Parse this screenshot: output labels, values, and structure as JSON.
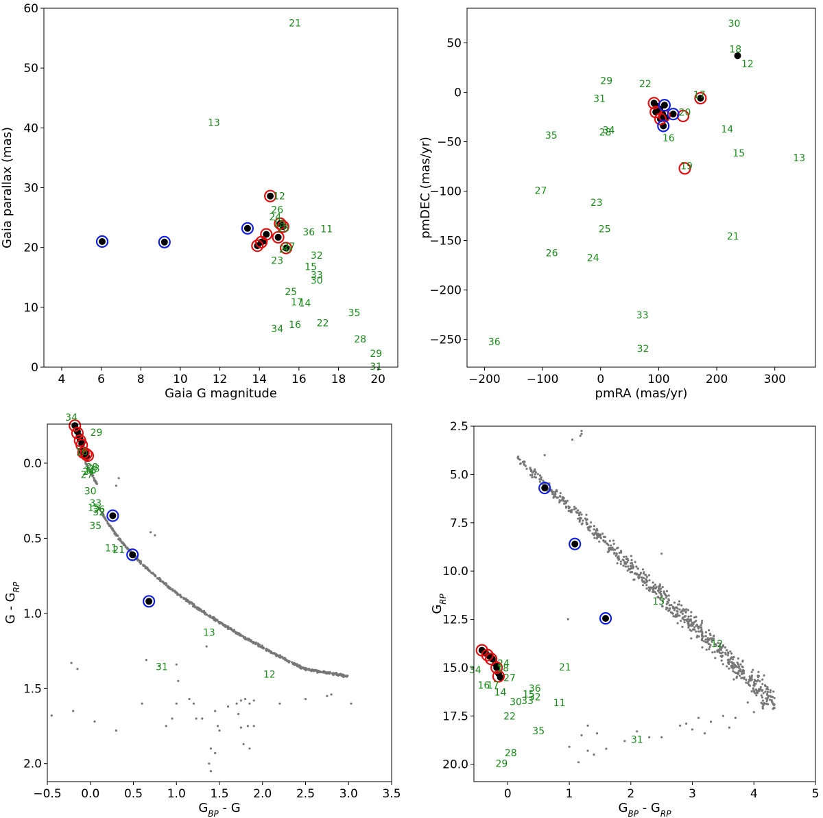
{
  "colors": {
    "label_green": "#1a8a1a",
    "ring_red": "#e01010",
    "ring_blue": "#1020e0",
    "bg_point": "#777777"
  },
  "chart_data": [
    {
      "type": "scatter",
      "name": "parallax_vs_g",
      "xlabel": "Gaia G magnitude",
      "ylabel": "Gaia parallax (mas)",
      "xlim": [
        3.1,
        21
      ],
      "ylim": [
        0,
        60
      ],
      "xticks": [
        4,
        6,
        8,
        10,
        12,
        14,
        16,
        18,
        20
      ],
      "yticks": [
        0,
        10,
        20,
        30,
        40,
        50,
        60
      ],
      "points": [
        [
          6.05,
          21.0
        ],
        [
          9.2,
          20.9
        ],
        [
          13.4,
          23.2
        ],
        [
          14.55,
          28.6
        ],
        [
          13.9,
          20.3
        ],
        [
          14.1,
          20.9
        ],
        [
          14.25,
          21.1
        ],
        [
          14.35,
          22.2
        ],
        [
          14.95,
          21.7
        ],
        [
          15.05,
          24.0
        ],
        [
          15.2,
          23.5
        ],
        [
          15.35,
          19.9
        ]
      ],
      "red_rings": [
        [
          14.55,
          28.6
        ],
        [
          13.9,
          20.3
        ],
        [
          14.1,
          20.9
        ],
        [
          14.35,
          22.2
        ],
        [
          14.95,
          21.7
        ],
        [
          15.05,
          24.0
        ],
        [
          15.2,
          23.5
        ],
        [
          15.35,
          19.9
        ]
      ],
      "blue_rings": [
        [
          6.05,
          21.0
        ],
        [
          9.2,
          20.9
        ],
        [
          13.4,
          23.2
        ]
      ],
      "labels": [
        {
          "text": "21",
          "x": 15.8,
          "y": 57.4
        },
        {
          "text": "13",
          "x": 11.7,
          "y": 40.8
        },
        {
          "text": "12",
          "x": 15.0,
          "y": 28.5
        },
        {
          "text": "26",
          "x": 14.9,
          "y": 26.2
        },
        {
          "text": "24",
          "x": 14.8,
          "y": 25.0
        },
        {
          "text": "19",
          "x": 15.0,
          "y": 23.9
        },
        {
          "text": "18",
          "x": 15.2,
          "y": 23.1
        },
        {
          "text": "36",
          "x": 16.5,
          "y": 22.5
        },
        {
          "text": "11",
          "x": 17.4,
          "y": 23.0
        },
        {
          "text": "27",
          "x": 15.5,
          "y": 20.1
        },
        {
          "text": "20",
          "x": 15.3,
          "y": 19.6
        },
        {
          "text": "23",
          "x": 14.9,
          "y": 17.7
        },
        {
          "text": "32",
          "x": 16.9,
          "y": 18.6
        },
        {
          "text": "15",
          "x": 16.6,
          "y": 16.7
        },
        {
          "text": "33",
          "x": 16.9,
          "y": 15.3
        },
        {
          "text": "30",
          "x": 16.9,
          "y": 14.4
        },
        {
          "text": "25",
          "x": 15.6,
          "y": 12.5
        },
        {
          "text": "17",
          "x": 15.9,
          "y": 10.8
        },
        {
          "text": "14",
          "x": 16.3,
          "y": 10.6
        },
        {
          "text": "35",
          "x": 18.8,
          "y": 9.0
        },
        {
          "text": "22",
          "x": 17.2,
          "y": 7.3
        },
        {
          "text": "16",
          "x": 15.8,
          "y": 7.0
        },
        {
          "text": "34",
          "x": 14.9,
          "y": 6.3
        },
        {
          "text": "28",
          "x": 19.1,
          "y": 4.6
        },
        {
          "text": "29",
          "x": 19.9,
          "y": 2.2
        },
        {
          "text": "31",
          "x": 19.9,
          "y": 0.0
        }
      ]
    },
    {
      "type": "scatter",
      "name": "proper_motion",
      "xlabel": "pmRA (mas/yr)",
      "ylabel": "pmDEC (mas/yr)",
      "xlim": [
        -230,
        370
      ],
      "ylim": [
        -278,
        85
      ],
      "xticks": [
        -200,
        -100,
        0,
        100,
        200,
        300
      ],
      "yticks": [
        -250,
        -200,
        -150,
        -100,
        -50,
        0,
        50
      ],
      "points": [
        [
          92,
          -11
        ],
        [
          97,
          -14
        ],
        [
          102,
          -17
        ],
        [
          107,
          -22
        ],
        [
          112,
          -26
        ],
        [
          95,
          -20
        ],
        [
          103,
          -27
        ],
        [
          110,
          -13
        ],
        [
          125,
          -22
        ],
        [
          108,
          -34
        ],
        [
          172,
          -6
        ],
        [
          236,
          37
        ]
      ],
      "red_rings": [
        [
          92,
          -11
        ],
        [
          95,
          -20
        ],
        [
          103,
          -27
        ],
        [
          110,
          -24
        ],
        [
          142,
          -24
        ],
        [
          145,
          -77
        ],
        [
          172,
          -6
        ]
      ],
      "blue_rings": [
        [
          110,
          -13
        ],
        [
          125,
          -22
        ],
        [
          108,
          -34
        ]
      ],
      "labels": [
        {
          "text": "30",
          "x": 230,
          "y": 69
        },
        {
          "text": "18",
          "x": 232,
          "y": 43
        },
        {
          "text": "12",
          "x": 253,
          "y": 28
        },
        {
          "text": "29",
          "x": 10,
          "y": 11
        },
        {
          "text": "22",
          "x": 77,
          "y": 8
        },
        {
          "text": "31",
          "x": -2,
          "y": -7
        },
        {
          "text": "17",
          "x": 170,
          "y": -3
        },
        {
          "text": "20",
          "x": 145,
          "y": -21
        },
        {
          "text": "35",
          "x": -85,
          "y": -44
        },
        {
          "text": "28",
          "x": 8,
          "y": -41
        },
        {
          "text": "34",
          "x": 14,
          "y": -39
        },
        {
          "text": "14",
          "x": 218,
          "y": -38
        },
        {
          "text": "16",
          "x": 117,
          "y": -47
        },
        {
          "text": "15",
          "x": 238,
          "y": -62
        },
        {
          "text": "13",
          "x": 342,
          "y": -67
        },
        {
          "text": "19",
          "x": 148,
          "y": -75
        },
        {
          "text": "27",
          "x": -103,
          "y": -100
        },
        {
          "text": "23",
          "x": -7,
          "y": -112
        },
        {
          "text": "25",
          "x": 7,
          "y": -139
        },
        {
          "text": "21",
          "x": 228,
          "y": -146
        },
        {
          "text": "26",
          "x": -84,
          "y": -163
        },
        {
          "text": "24",
          "x": -13,
          "y": -168
        },
        {
          "text": "33",
          "x": 72,
          "y": -226
        },
        {
          "text": "32",
          "x": 73,
          "y": -260
        },
        {
          "text": "36",
          "x": -183,
          "y": -253
        }
      ]
    },
    {
      "type": "scatter",
      "name": "color_color",
      "xlabel_main": "G",
      "xlabel_sub": "BP",
      "xlabel_tail": " - G",
      "ylabel_main": "G - G",
      "ylabel_sub": "RP",
      "xlim": [
        -0.5,
        3.5
      ],
      "ylim": [
        2.12,
        -0.26
      ],
      "yinverted": true,
      "xticks": [
        -0.5,
        0.0,
        0.5,
        1.0,
        1.5,
        2.0,
        2.5,
        3.0,
        3.5
      ],
      "xticklabels": [
        "−0.5",
        "0.0",
        "0.5",
        "1.0",
        "1.5",
        "2.0",
        "2.5",
        "3.0",
        "3.5"
      ],
      "yticks": [
        0.0,
        0.5,
        1.0,
        1.5,
        2.0
      ],
      "ytickformat": "fixed1",
      "points": [
        [
          -0.18,
          -0.25
        ],
        [
          -0.15,
          -0.21
        ],
        [
          -0.13,
          -0.18
        ],
        [
          -0.12,
          -0.16
        ],
        [
          -0.1,
          -0.13
        ],
        [
          -0.1,
          -0.08
        ],
        [
          -0.08,
          -0.06
        ],
        [
          -0.06,
          -0.05
        ],
        [
          -0.05,
          -0.07
        ],
        [
          -0.04,
          -0.04
        ],
        [
          0.26,
          0.35
        ],
        [
          0.49,
          0.61
        ],
        [
          0.68,
          0.92
        ]
      ],
      "red_rings": [
        [
          -0.18,
          -0.25
        ],
        [
          -0.15,
          -0.2
        ],
        [
          -0.12,
          -0.15
        ],
        [
          -0.1,
          -0.12
        ],
        [
          -0.08,
          -0.07
        ],
        [
          -0.05,
          -0.06
        ],
        [
          -0.03,
          -0.05
        ]
      ],
      "blue_rings": [
        [
          0.26,
          0.35
        ],
        [
          0.49,
          0.61
        ],
        [
          0.68,
          0.92
        ]
      ],
      "labels": [
        {
          "text": "34",
          "x": -0.22,
          "y": -0.3
        },
        {
          "text": "29",
          "x": 0.07,
          "y": -0.2
        },
        {
          "text": "28",
          "x": 0.02,
          "y": 0.03
        },
        {
          "text": "18",
          "x": 0.0,
          "y": 0.05
        },
        {
          "text": "24",
          "x": -0.02,
          "y": 0.06
        },
        {
          "text": "27",
          "x": -0.04,
          "y": 0.08
        },
        {
          "text": "30",
          "x": 0.0,
          "y": 0.19
        },
        {
          "text": "33",
          "x": 0.06,
          "y": 0.27
        },
        {
          "text": "15",
          "x": 0.04,
          "y": 0.3
        },
        {
          "text": "36",
          "x": 0.1,
          "y": 0.31
        },
        {
          "text": "32",
          "x": 0.1,
          "y": 0.33
        },
        {
          "text": "35",
          "x": 0.06,
          "y": 0.42
        },
        {
          "text": "11",
          "x": 0.24,
          "y": 0.57
        },
        {
          "text": "21",
          "x": 0.33,
          "y": 0.58
        },
        {
          "text": "13",
          "x": 1.38,
          "y": 1.13
        },
        {
          "text": "31",
          "x": 0.83,
          "y": 1.36
        },
        {
          "text": "12",
          "x": 2.08,
          "y": 1.41
        },
        {
          "text": "16",
          "x": -0.1,
          "y": -0.07
        },
        {
          "text": "23",
          "x": 0.04,
          "y": 0.04
        }
      ]
    },
    {
      "type": "scatter",
      "name": "color_magnitude",
      "xlabel_main": "G",
      "xlabel_sub1": "BP",
      "xlabel_mid": " - G",
      "xlabel_sub2": "RP",
      "ylabel_main": "G",
      "ylabel_sub": "RP",
      "xlim": [
        -0.55,
        5.0
      ],
      "ylim": [
        20.9,
        2.5
      ],
      "yinverted": true,
      "xticks": [
        0,
        1,
        2,
        3,
        4,
        5
      ],
      "yticks": [
        2.5,
        5.0,
        7.5,
        10.0,
        12.5,
        15.0,
        17.5,
        20.0
      ],
      "ytickformat": "fixed1",
      "points": [
        [
          -0.42,
          14.1
        ],
        [
          -0.36,
          14.25
        ],
        [
          -0.3,
          14.4
        ],
        [
          -0.25,
          14.55
        ],
        [
          -0.2,
          14.8
        ],
        [
          -0.18,
          15.0
        ],
        [
          -0.15,
          15.3
        ],
        [
          -0.12,
          15.5
        ],
        [
          0.6,
          5.7
        ],
        [
          1.09,
          8.6
        ],
        [
          1.59,
          12.45
        ]
      ],
      "red_rings": [
        [
          -0.42,
          14.1
        ],
        [
          -0.33,
          14.35
        ],
        [
          -0.27,
          14.55
        ],
        [
          -0.18,
          15.0
        ],
        [
          -0.15,
          15.45
        ]
      ],
      "blue_rings": [
        [
          0.6,
          5.7
        ],
        [
          1.09,
          8.6
        ],
        [
          1.59,
          12.45
        ]
      ],
      "labels": [
        {
          "text": "13",
          "x": 2.45,
          "y": 11.6
        },
        {
          "text": "12",
          "x": 3.4,
          "y": 13.8
        },
        {
          "text": "21",
          "x": 0.93,
          "y": 15.0
        },
        {
          "text": "34",
          "x": -0.53,
          "y": 15.15
        },
        {
          "text": "24",
          "x": -0.07,
          "y": 14.8
        },
        {
          "text": "18",
          "x": -0.08,
          "y": 15.05
        },
        {
          "text": "27",
          "x": 0.03,
          "y": 15.55
        },
        {
          "text": "16",
          "x": -0.39,
          "y": 15.95
        },
        {
          "text": "17",
          "x": -0.24,
          "y": 15.95
        },
        {
          "text": "14",
          "x": -0.12,
          "y": 16.3
        },
        {
          "text": "36",
          "x": 0.44,
          "y": 16.1
        },
        {
          "text": "15",
          "x": 0.34,
          "y": 16.4
        },
        {
          "text": "32",
          "x": 0.44,
          "y": 16.55
        },
        {
          "text": "33",
          "x": 0.32,
          "y": 16.75
        },
        {
          "text": "30",
          "x": 0.13,
          "y": 16.8
        },
        {
          "text": "11",
          "x": 0.84,
          "y": 16.85
        },
        {
          "text": "22",
          "x": 0.03,
          "y": 17.55
        },
        {
          "text": "35",
          "x": 0.5,
          "y": 18.3
        },
        {
          "text": "31",
          "x": 2.1,
          "y": 18.75
        },
        {
          "text": "28",
          "x": 0.05,
          "y": 19.45
        },
        {
          "text": "29",
          "x": -0.1,
          "y": 20.0
        }
      ]
    }
  ]
}
